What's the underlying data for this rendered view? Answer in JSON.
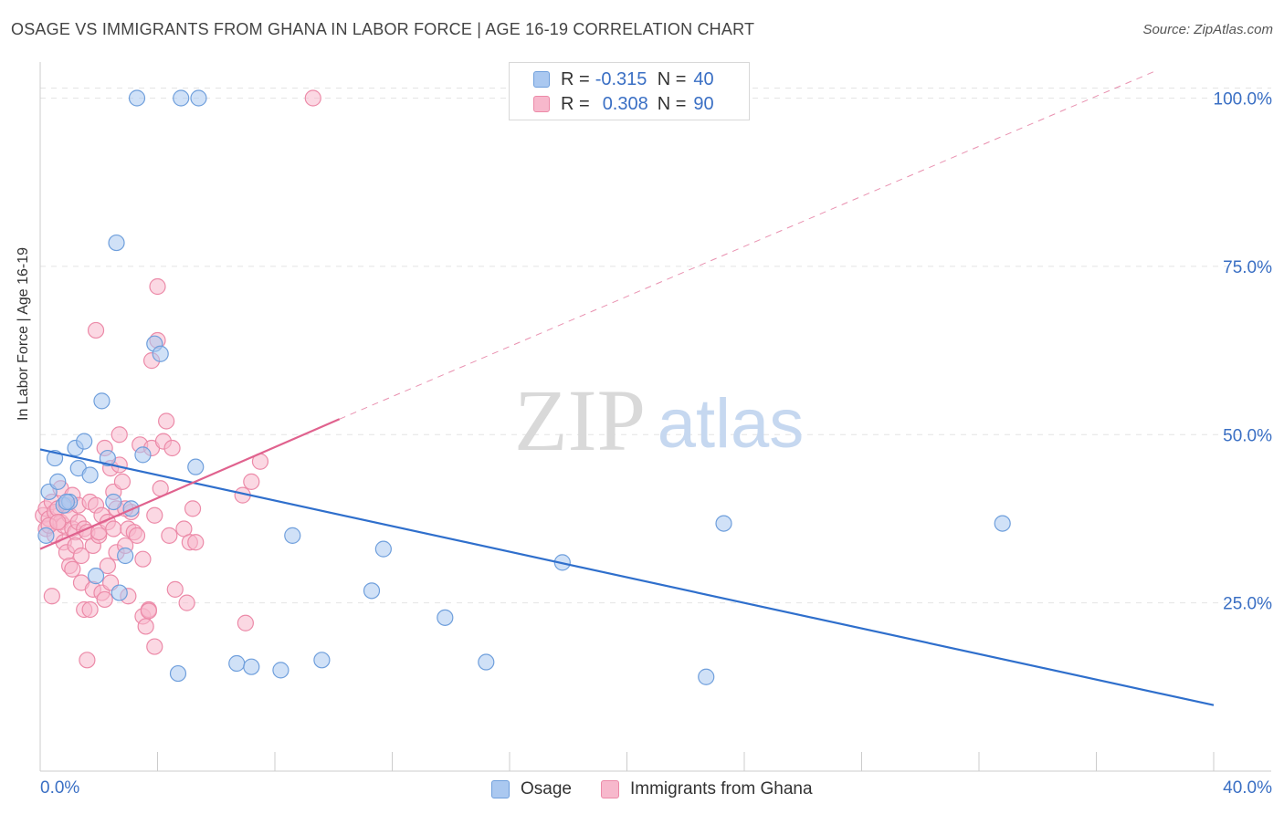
{
  "title": "OSAGE VS IMMIGRANTS FROM GHANA IN LABOR FORCE | AGE 16-19 CORRELATION CHART",
  "source": "Source: ZipAtlas.com",
  "watermark": {
    "zip": "ZIP",
    "atlas": "atlas"
  },
  "legend": {
    "r_label": "R =",
    "n_label": "N =",
    "rows": [
      {
        "r": "-0.315",
        "n": "40"
      },
      {
        "r": "0.308",
        "n": "90"
      }
    ]
  },
  "colors": {
    "osage_fill": "#aac8f0",
    "osage_stroke": "#6f9fdc",
    "osage_line": "#2f6fcc",
    "ghana_fill": "#f7b8cc",
    "ghana_stroke": "#ec8aa8",
    "ghana_line": "#e0628e",
    "tick_text": "#3a6fc4",
    "grid": "#e4e4e4"
  },
  "chart_data": {
    "type": "scatter",
    "title": "OSAGE VS IMMIGRANTS FROM GHANA IN LABOR FORCE | AGE 16-19 CORRELATION CHART",
    "xlabel": "",
    "ylabel": "In Labor Force | Age 16-19",
    "xlim": [
      0,
      40
    ],
    "ylim": [
      0,
      104
    ],
    "x_tick_labels": [
      "0.0%",
      "40.0%"
    ],
    "y_ticks": [
      25,
      50,
      75,
      100
    ],
    "y_tick_labels": [
      "25.0%",
      "50.0%",
      "75.0%",
      "100.0%"
    ],
    "series": [
      {
        "name": "Osage",
        "r": -0.315,
        "n": 40,
        "trend": {
          "x0": 0,
          "y0": 47.8,
          "x1": 40,
          "y1": 9.8
        },
        "points": [
          [
            0.2,
            35
          ],
          [
            0.3,
            41.5
          ],
          [
            0.5,
            46.5
          ],
          [
            0.6,
            43
          ],
          [
            0.8,
            39.5
          ],
          [
            1.0,
            40
          ],
          [
            1.2,
            48
          ],
          [
            1.3,
            45
          ],
          [
            1.5,
            49
          ],
          [
            1.7,
            44
          ],
          [
            1.9,
            29
          ],
          [
            2.1,
            55
          ],
          [
            2.3,
            46.5
          ],
          [
            2.5,
            40
          ],
          [
            2.6,
            78.5
          ],
          [
            2.7,
            26.5
          ],
          [
            2.9,
            32
          ],
          [
            3.1,
            39
          ],
          [
            3.3,
            100
          ],
          [
            3.5,
            47
          ],
          [
            3.9,
            63.5
          ],
          [
            4.1,
            62
          ],
          [
            4.7,
            14.5
          ],
          [
            4.8,
            100
          ],
          [
            5.3,
            45.2
          ],
          [
            5.4,
            100
          ],
          [
            6.7,
            16
          ],
          [
            7.2,
            15.5
          ],
          [
            8.2,
            15
          ],
          [
            8.6,
            35
          ],
          [
            9.6,
            16.5
          ],
          [
            11.3,
            26.8
          ],
          [
            11.7,
            33
          ],
          [
            13.8,
            22.8
          ],
          [
            15.2,
            16.2
          ],
          [
            17.8,
            31
          ],
          [
            22.7,
            14
          ],
          [
            23.3,
            36.8
          ],
          [
            32.8,
            36.8
          ],
          [
            0.9,
            40
          ]
        ]
      },
      {
        "name": "Immigrants from Ghana",
        "r": 0.308,
        "n": 90,
        "trend": {
          "x0": 0,
          "y0": 33,
          "x1": 10.2,
          "y1": 52.3
        },
        "trend_ext": {
          "x0": 10.2,
          "y0": 52.3,
          "x1": 38.0,
          "y1": 104
        },
        "points": [
          [
            0.1,
            38
          ],
          [
            0.2,
            36
          ],
          [
            0.2,
            39
          ],
          [
            0.3,
            37.5
          ],
          [
            0.4,
            40
          ],
          [
            0.4,
            26
          ],
          [
            0.5,
            38.5
          ],
          [
            0.5,
            35
          ],
          [
            0.6,
            39
          ],
          [
            0.7,
            42
          ],
          [
            0.7,
            37
          ],
          [
            0.8,
            34
          ],
          [
            0.8,
            36.5
          ],
          [
            0.9,
            39.5
          ],
          [
            0.9,
            32.5
          ],
          [
            1.0,
            30.5
          ],
          [
            1.0,
            38
          ],
          [
            1.1,
            36
          ],
          [
            1.1,
            41
          ],
          [
            1.2,
            35.5
          ],
          [
            1.2,
            33.5
          ],
          [
            1.3,
            39.5
          ],
          [
            1.3,
            37
          ],
          [
            1.4,
            28
          ],
          [
            1.4,
            32
          ],
          [
            1.5,
            24
          ],
          [
            1.5,
            36
          ],
          [
            1.6,
            16.5
          ],
          [
            1.6,
            35.5
          ],
          [
            1.7,
            40
          ],
          [
            1.7,
            24
          ],
          [
            1.8,
            27
          ],
          [
            1.8,
            33.5
          ],
          [
            1.9,
            39.5
          ],
          [
            1.9,
            65.5
          ],
          [
            2.0,
            35
          ],
          [
            2.0,
            35.5
          ],
          [
            2.1,
            38
          ],
          [
            2.1,
            26.5
          ],
          [
            2.2,
            25.5
          ],
          [
            2.2,
            48
          ],
          [
            2.3,
            37
          ],
          [
            2.3,
            30.5
          ],
          [
            2.4,
            45
          ],
          [
            2.4,
            28
          ],
          [
            2.5,
            36
          ],
          [
            2.5,
            41.5
          ],
          [
            2.6,
            32.5
          ],
          [
            2.6,
            39
          ],
          [
            2.7,
            50
          ],
          [
            2.7,
            45.5
          ],
          [
            2.8,
            43
          ],
          [
            2.9,
            33.5
          ],
          [
            3.0,
            36
          ],
          [
            3.0,
            26
          ],
          [
            3.1,
            38.5
          ],
          [
            3.2,
            35.5
          ],
          [
            3.3,
            35
          ],
          [
            3.4,
            48.5
          ],
          [
            3.5,
            31.5
          ],
          [
            3.5,
            23
          ],
          [
            3.6,
            21.5
          ],
          [
            3.7,
            24
          ],
          [
            3.8,
            48
          ],
          [
            3.8,
            61
          ],
          [
            3.9,
            38
          ],
          [
            3.9,
            18.5
          ],
          [
            4.0,
            64
          ],
          [
            4.0,
            72
          ],
          [
            4.1,
            42
          ],
          [
            4.2,
            49
          ],
          [
            4.3,
            52
          ],
          [
            4.4,
            35
          ],
          [
            4.5,
            48
          ],
          [
            4.6,
            27
          ],
          [
            4.9,
            36
          ],
          [
            5.0,
            25
          ],
          [
            5.1,
            34
          ],
          [
            5.2,
            39
          ],
          [
            6.9,
            41
          ],
          [
            7.0,
            22
          ],
          [
            7.2,
            43
          ],
          [
            7.5,
            46
          ],
          [
            9.3,
            100
          ],
          [
            0.3,
            36.5
          ],
          [
            0.6,
            37
          ],
          [
            1.1,
            30
          ],
          [
            2.9,
            39
          ],
          [
            3.7,
            23.8
          ],
          [
            5.3,
            34
          ]
        ]
      }
    ]
  }
}
